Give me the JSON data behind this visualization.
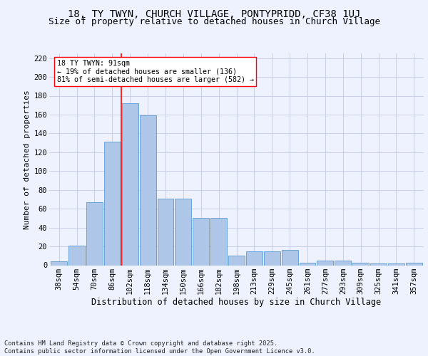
{
  "title1": "18, TY TWYN, CHURCH VILLAGE, PONTYPRIDD, CF38 1UJ",
  "title2": "Size of property relative to detached houses in Church Village",
  "xlabel": "Distribution of detached houses by size in Church Village",
  "ylabel": "Number of detached properties",
  "categories": [
    "38sqm",
    "54sqm",
    "70sqm",
    "86sqm",
    "102sqm",
    "118sqm",
    "134sqm",
    "150sqm",
    "166sqm",
    "182sqm",
    "198sqm",
    "213sqm",
    "229sqm",
    "245sqm",
    "261sqm",
    "277sqm",
    "293sqm",
    "309sqm",
    "325sqm",
    "341sqm",
    "357sqm"
  ],
  "values": [
    4,
    21,
    67,
    131,
    172,
    159,
    71,
    71,
    50,
    50,
    10,
    15,
    15,
    16,
    3,
    5,
    5,
    3,
    2,
    2,
    3
  ],
  "bar_color": "#aec6e8",
  "bar_edge_color": "#5b9bd5",
  "vline_x": 3.5,
  "vline_color": "red",
  "annotation_text": "18 TY TWYN: 91sqm\n← 19% of detached houses are smaller (136)\n81% of semi-detached houses are larger (582) →",
  "ylim": [
    0,
    225
  ],
  "yticks": [
    0,
    20,
    40,
    60,
    80,
    100,
    120,
    140,
    160,
    180,
    200,
    220
  ],
  "footer": "Contains HM Land Registry data © Crown copyright and database right 2025.\nContains public sector information licensed under the Open Government Licence v3.0.",
  "bg_color": "#eef2ff",
  "grid_color": "#c8d0e8",
  "title1_fontsize": 10,
  "title2_fontsize": 9,
  "xlabel_fontsize": 8.5,
  "ylabel_fontsize": 8,
  "tick_fontsize": 7.5,
  "footer_fontsize": 6.2
}
